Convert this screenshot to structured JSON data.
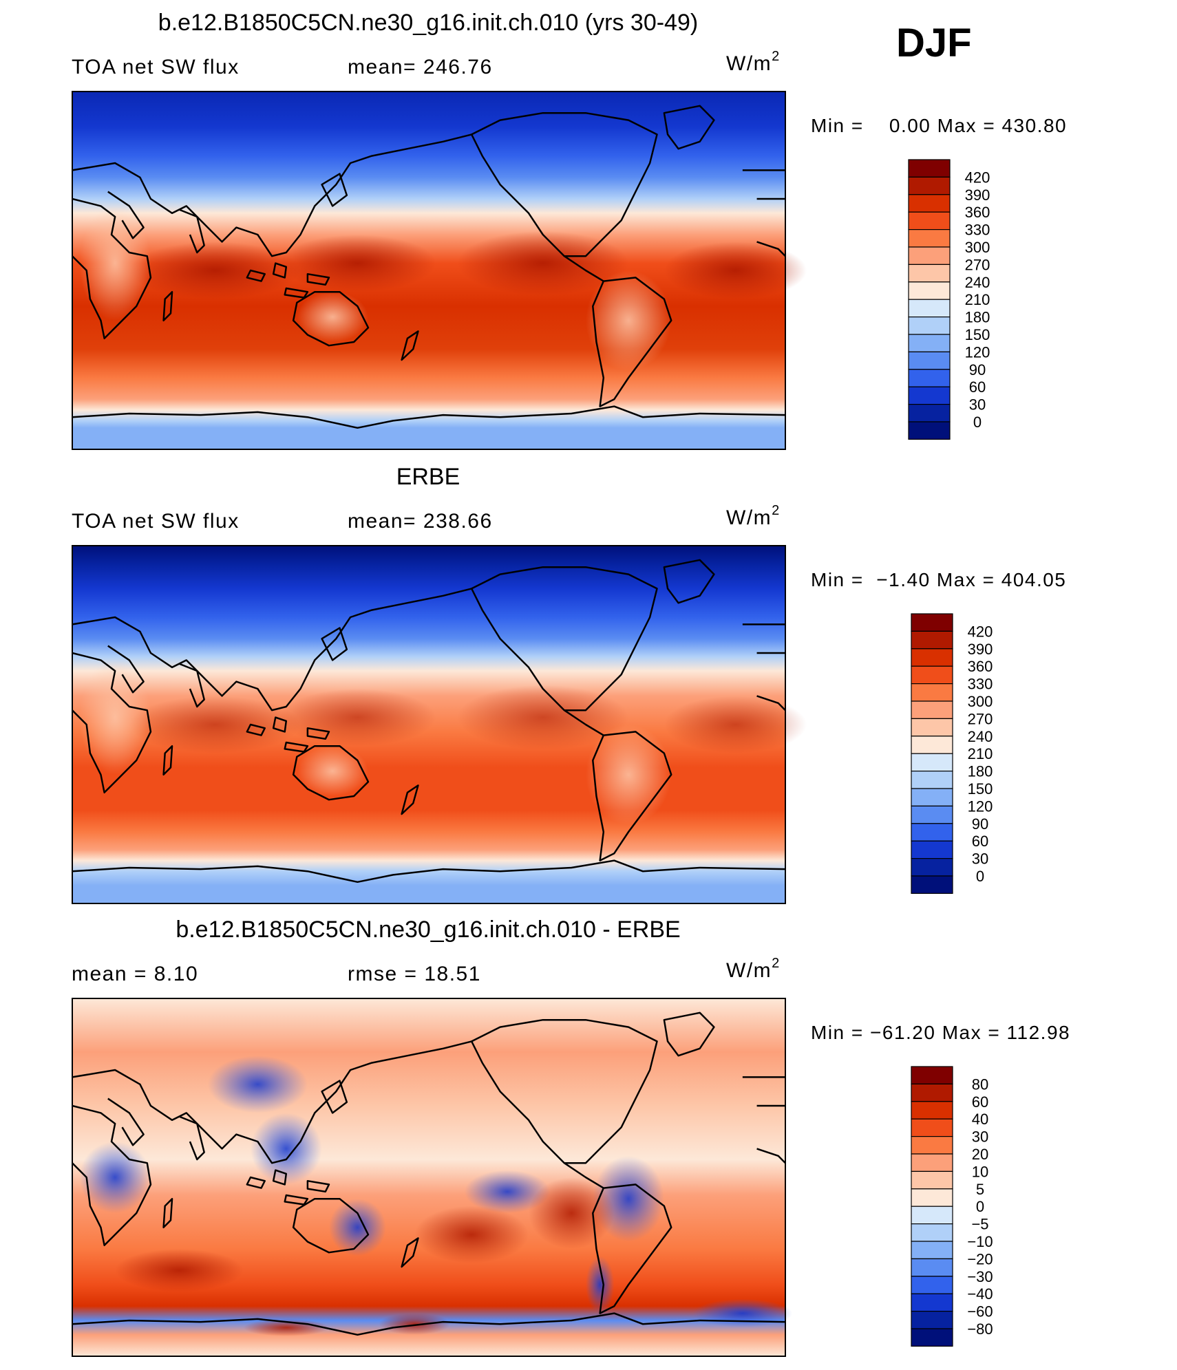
{
  "season": "DJF",
  "panels": [
    {
      "title": "b.e12.B1850C5CN.ne30_g16.init.ch.010 (yrs 30-49)",
      "left_label": "TOA net SW flux",
      "center_label": "mean= 246.76",
      "units": "W/m",
      "units_sup": "2",
      "minmax": "Min =    0.00 Max = 430.80"
    },
    {
      "title": "ERBE",
      "left_label": "TOA net SW flux",
      "center_label": "mean= 238.66",
      "units": "W/m",
      "units_sup": "2",
      "minmax": "Min =  −1.40 Max = 404.05"
    },
    {
      "title": "b.e12.B1850C5CN.ne30_g16.init.ch.010 - ERBE",
      "left_label": "mean =    8.10",
      "center_label": "rmse =   18.51",
      "units": "W/m",
      "units_sup": "2",
      "minmax": "Min = −61.20 Max = 112.98"
    }
  ],
  "chart_data": [
    {
      "type": "heatmap",
      "title": "b.e12.B1850C5CN.ne30_g16.init.ch.010 (yrs 30-49)",
      "variable": "TOA net SW flux",
      "units": "W/m2",
      "mean": 246.76,
      "min": 0.0,
      "max": 430.8,
      "colorbar_levels": [
        "420",
        "390",
        "360",
        "330",
        "300",
        "270",
        "240",
        "210",
        "180",
        "150",
        "120",
        "90",
        "60",
        "30",
        "0"
      ],
      "colorbar_colors": [
        "#7f0000",
        "#b01a00",
        "#d93000",
        "#f04e1a",
        "#fa7a42",
        "#fca07a",
        "#fdc6a8",
        "#fde8d8",
        "#d6e8fa",
        "#b0d0f8",
        "#84b0f6",
        "#5a8cf2",
        "#3262ec",
        "#1438d0",
        "#0622a0",
        "#00107a"
      ]
    },
    {
      "type": "heatmap",
      "title": "ERBE",
      "variable": "TOA net SW flux",
      "units": "W/m2",
      "mean": 238.66,
      "min": -1.4,
      "max": 404.05,
      "colorbar_levels": [
        "420",
        "390",
        "360",
        "330",
        "300",
        "270",
        "240",
        "210",
        "180",
        "150",
        "120",
        "90",
        "60",
        "30",
        "0"
      ],
      "colorbar_colors": [
        "#7f0000",
        "#b01a00",
        "#d93000",
        "#f04e1a",
        "#fa7a42",
        "#fca07a",
        "#fdc6a8",
        "#fde8d8",
        "#d6e8fa",
        "#b0d0f8",
        "#84b0f6",
        "#5a8cf2",
        "#3262ec",
        "#1438d0",
        "#0622a0",
        "#00107a"
      ]
    },
    {
      "type": "heatmap",
      "title": "b.e12.B1850C5CN.ne30_g16.init.ch.010 - ERBE",
      "units": "W/m2",
      "mean": 8.1,
      "rmse": 18.51,
      "min": -61.2,
      "max": 112.98,
      "colorbar_levels": [
        "80",
        "60",
        "40",
        "30",
        "20",
        "10",
        "5",
        "0",
        "−5",
        "−10",
        "−20",
        "−30",
        "−40",
        "−60",
        "−80"
      ],
      "colorbar_colors": [
        "#7f0000",
        "#b01a00",
        "#d93000",
        "#f04e1a",
        "#fa7a42",
        "#fca07a",
        "#fdc6a8",
        "#fde8d8",
        "#d6e8fa",
        "#b0d0f8",
        "#84b0f6",
        "#5a8cf2",
        "#3262ec",
        "#1438d0",
        "#0622a0",
        "#00107a"
      ]
    }
  ]
}
